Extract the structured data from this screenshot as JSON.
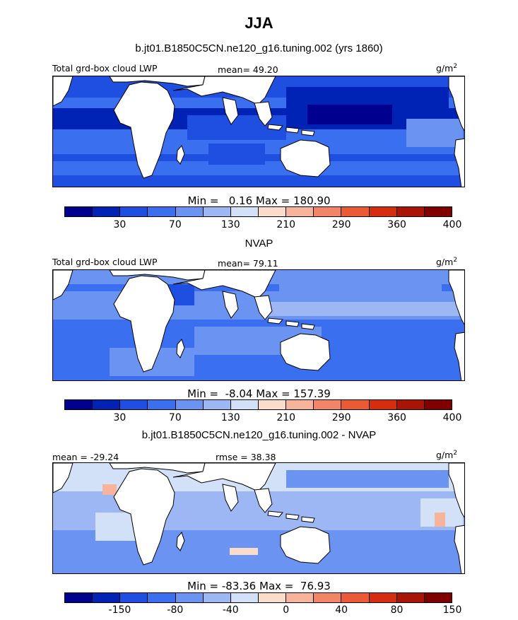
{
  "page_title": "JJA",
  "colorbar_colors": [
    "#00008f",
    "#0022b5",
    "#1f4fe0",
    "#3a6ff0",
    "#6a93f2",
    "#9db7f5",
    "#d2e0f8",
    "#fbdccb",
    "#f7b49a",
    "#f18565",
    "#ea5a34",
    "#d62c10",
    "#a81505",
    "#800000"
  ],
  "land_color": "#ffffff",
  "chart_data": [
    {
      "type": "heatmap",
      "title": "b.jt01.B1850C5CN.ne120_g16.tuning.002 (yrs 1860)",
      "left_label": "Total grd-box cloud LWP",
      "center_label": "mean=  49.20",
      "units": "g/m",
      "units_sup": "2",
      "min_label": "Min =",
      "min_value": "0.16",
      "max_label": "Max =",
      "max_value": "180.90",
      "colorbar_ticks": [
        "30",
        "70",
        "130",
        "210",
        "290",
        "360",
        "400"
      ],
      "dominant_level": 2
    },
    {
      "type": "heatmap",
      "title": "NVAP",
      "left_label": "Total grd-box cloud LWP",
      "center_label": "mean=  79.11",
      "units": "g/m",
      "units_sup": "2",
      "min_label": "Min =",
      "min_value": "-8.04",
      "max_label": "Max =",
      "max_value": "157.39",
      "colorbar_ticks": [
        "30",
        "70",
        "130",
        "210",
        "290",
        "360",
        "400"
      ],
      "dominant_level": 3
    },
    {
      "type": "heatmap",
      "title": "b.jt01.B1850C5CN.ne120_g16.tuning.002 - NVAP",
      "left_label": "mean = -29.24",
      "center_label": "rmse =  38.38",
      "units": "g/m",
      "units_sup": "2",
      "min_label": "Min =",
      "min_value": "-83.36",
      "max_label": "Max =",
      "max_value": "76.93",
      "colorbar_ticks": [
        "-150",
        "-80",
        "-40",
        "0",
        "40",
        "80",
        "150"
      ],
      "dominant_level": 5
    }
  ]
}
